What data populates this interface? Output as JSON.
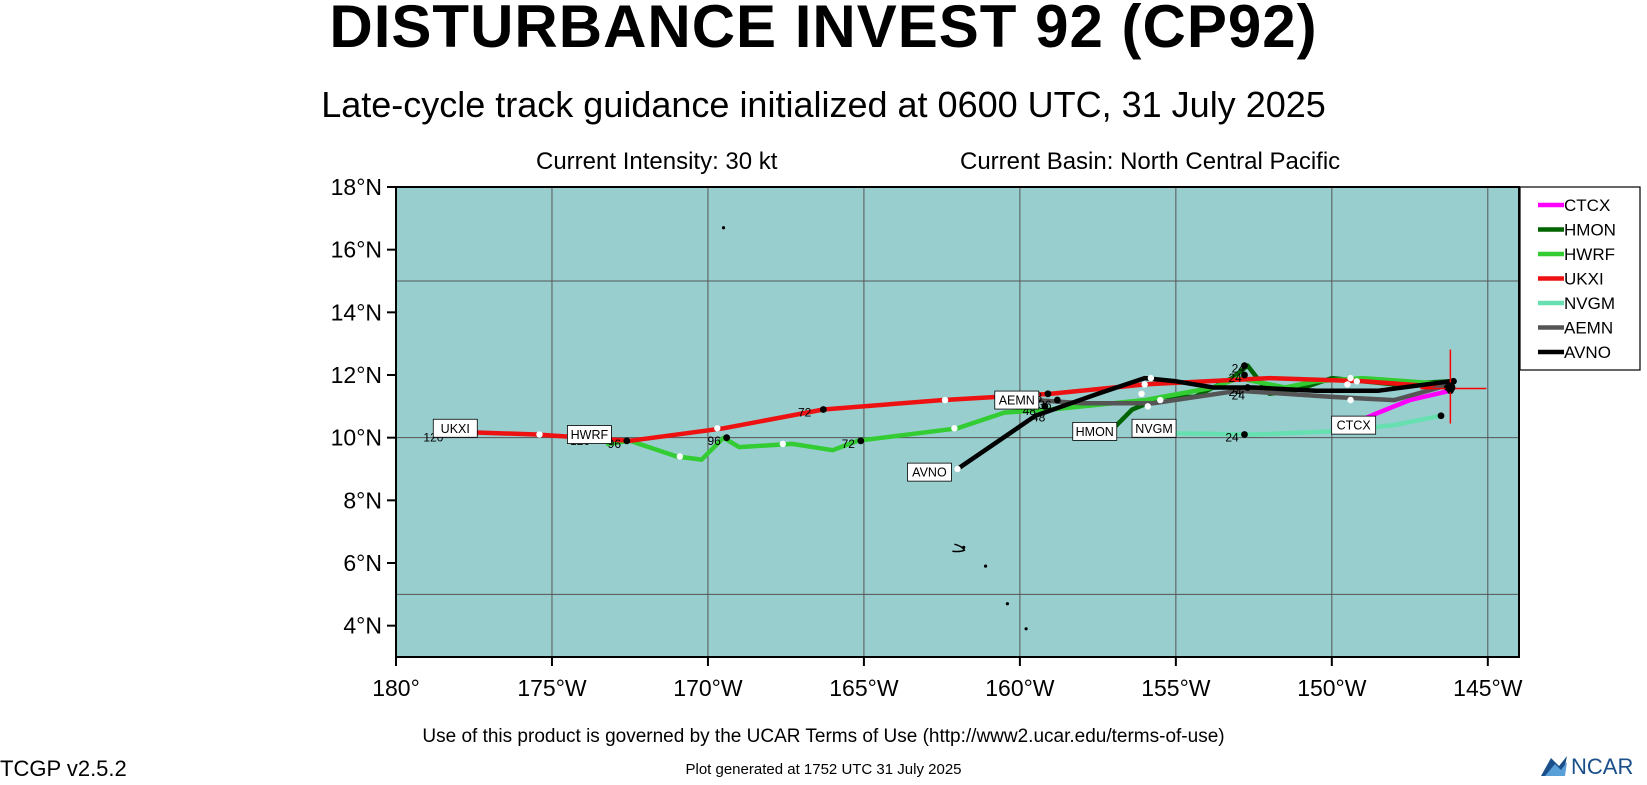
{
  "header": {
    "title": "DISTURBANCE INVEST 92 (CP92)",
    "subtitle": "Late-cycle track guidance initialized at 0600 UTC, 31 July 2025",
    "intensity": "Current Intensity: 30 kt",
    "basin": "Current Basin: North Central Pacific"
  },
  "footer": {
    "terms": "Use of this product is governed by the UCAR Terms of Use (http://www2.ucar.edu/terms-of-use)",
    "version": "TCGP v2.5.2",
    "generated": "Plot generated at 1752 UTC   31 July 2025",
    "logo_text": "NCAR"
  },
  "colors": {
    "ocean": "#99CECF",
    "grid": "#555555",
    "current_position": "#FF0000"
  },
  "chart_data": {
    "type": "line",
    "title": "DISTURBANCE INVEST 92 (CP92)",
    "xlim": [
      -180,
      -144
    ],
    "ylim": [
      3,
      18
    ],
    "x_ticks": [
      -180,
      -175,
      -170,
      -165,
      -160,
      -155,
      -150,
      -145
    ],
    "x_tick_labels": [
      "180°",
      "175°W",
      "170°W",
      "165°W",
      "160°W",
      "155°W",
      "150°W",
      "145°W"
    ],
    "y_ticks": [
      4,
      6,
      8,
      10,
      12,
      14,
      16,
      18
    ],
    "y_tick_labels": [
      "4°N",
      "6°N",
      "8°N",
      "10°N",
      "12°N",
      "14°N",
      "16°N",
      "18°N"
    ],
    "grid": true,
    "legend_position": "right",
    "current_position": {
      "lon": -146.2,
      "lat": 11.6
    },
    "series": [
      {
        "name": "CTCX",
        "color": "#FF00FF",
        "track": [
          [
            -146.2,
            11.5
          ],
          [
            -147.5,
            11.2
          ],
          [
            -148.5,
            10.8
          ],
          [
            -149.2,
            10.5
          ]
        ],
        "tag": {
          "text": "CTCX",
          "lon": -149.3,
          "lat": 10.4
        },
        "point_labels": []
      },
      {
        "name": "HMON",
        "color": "#006400",
        "track": [
          [
            -146.2,
            11.8
          ],
          [
            -148,
            11.7
          ],
          [
            -150,
            11.9
          ],
          [
            -151.2,
            11.5
          ],
          [
            -152,
            11.4
          ],
          [
            -152.7,
            12.3
          ],
          [
            -153.2,
            11.9
          ],
          [
            -154.4,
            11.3
          ],
          [
            -155.4,
            11.3
          ],
          [
            -156.4,
            10.9
          ],
          [
            -157,
            10.3
          ]
        ],
        "tag": {
          "text": "HMON",
          "lon": -157.6,
          "lat": 10.2
        },
        "point_labels": [
          {
            "text": "24",
            "lon": -153.0,
            "lat": 12.2
          }
        ]
      },
      {
        "name": "HWRF",
        "color": "#33CC33",
        "track": [
          [
            -146.2,
            11.7
          ],
          [
            -149,
            11.9
          ],
          [
            -150.5,
            11.8
          ],
          [
            -151.5,
            11.6
          ],
          [
            -153,
            11.9
          ],
          [
            -153.8,
            11.6
          ],
          [
            -156,
            11.2
          ],
          [
            -159,
            10.9
          ],
          [
            -160.5,
            10.8
          ],
          [
            -162,
            10.3
          ],
          [
            -165.2,
            9.9
          ],
          [
            -166,
            9.6
          ],
          [
            -167.3,
            9.8
          ],
          [
            -169,
            9.7
          ],
          [
            -169.5,
            10
          ],
          [
            -170.2,
            9.3
          ],
          [
            -171,
            9.4
          ],
          [
            -172.5,
            9.9
          ],
          [
            -173.2,
            9.8
          ]
        ],
        "tag": {
          "text": "HWRF",
          "lon": -173.8,
          "lat": 10.1
        },
        "point_labels": [
          {
            "text": "96",
            "lon": -173.0,
            "lat": 9.8
          }
        ]
      },
      {
        "name": "UKXI",
        "color": "#EE1111",
        "track": [
          [
            -146.2,
            11.6
          ],
          [
            -149,
            11.8
          ],
          [
            -152,
            11.9
          ],
          [
            -156,
            11.7
          ],
          [
            -159,
            11.4
          ],
          [
            -162.5,
            11.2
          ],
          [
            -166.3,
            10.9
          ],
          [
            -169.5,
            10.3
          ],
          [
            -172.5,
            9.9
          ],
          [
            -175.5,
            10.1
          ],
          [
            -178.5,
            10.2
          ]
        ],
        "tag": {
          "text": "UKXI",
          "lon": -178.1,
          "lat": 10.3
        },
        "point_labels": [
          {
            "text": "120",
            "lon": -178.8,
            "lat": 10.0
          },
          {
            "text": "120",
            "lon": -174.1,
            "lat": 9.9
          },
          {
            "text": "96",
            "lon": -169.8,
            "lat": 9.9
          },
          {
            "text": "72",
            "lon": -166.9,
            "lat": 10.8
          },
          {
            "text": "72",
            "lon": -165.5,
            "lat": 9.8
          }
        ]
      },
      {
        "name": "NVGM",
        "color": "#66E0B0",
        "track": [
          [
            -146.5,
            10.7
          ],
          [
            -148,
            10.4
          ],
          [
            -150,
            10.2
          ],
          [
            -152.5,
            10.1
          ],
          [
            -155.7,
            10.15
          ]
        ],
        "tag": {
          "text": "NVGM",
          "lon": -155.7,
          "lat": 10.3
        },
        "point_labels": [
          {
            "text": "24",
            "lon": -153.2,
            "lat": 10.0
          }
        ]
      },
      {
        "name": "AEMN",
        "color": "#555555",
        "track": [
          [
            -146.2,
            11.7
          ],
          [
            -148,
            11.2
          ],
          [
            -150,
            11.3
          ],
          [
            -153,
            11.5
          ],
          [
            -155.7,
            11.1
          ],
          [
            -158,
            11.1
          ],
          [
            -159.5,
            11.2
          ]
        ],
        "tag": {
          "text": "AEMN",
          "lon": -160.1,
          "lat": 11.2
        },
        "point_labels": [
          {
            "text": "48",
            "lon": -159.5,
            "lat": 11.3
          },
          {
            "text": "48",
            "lon": -159.7,
            "lat": 10.85
          },
          {
            "text": "36",
            "lon": -159.2,
            "lat": 11.05
          },
          {
            "text": "48",
            "lon": -159.4,
            "lat": 10.65
          },
          {
            "text": "24",
            "lon": -153.1,
            "lat": 11.9
          },
          {
            "text": "24",
            "lon": -153.1,
            "lat": 11.45
          },
          {
            "text": "24",
            "lon": -153.0,
            "lat": 11.35
          }
        ]
      },
      {
        "name": "AVNO",
        "color": "#000000",
        "track": [
          [
            -146.2,
            11.8
          ],
          [
            -148.5,
            11.5
          ],
          [
            -150.5,
            11.5
          ],
          [
            -152.5,
            11.6
          ],
          [
            -153.8,
            11.6
          ],
          [
            -155,
            11.8
          ],
          [
            -156,
            11.9
          ],
          [
            -157.5,
            11.4
          ],
          [
            -159.5,
            10.7
          ],
          [
            -162,
            9.0
          ]
        ],
        "tag": {
          "text": "AVNO",
          "lon": -162.9,
          "lat": 8.9
        },
        "point_labels": []
      }
    ],
    "white_points": [
      [
        -175.4,
        10.1
      ],
      [
        -169.7,
        10.3
      ],
      [
        -162.4,
        11.2
      ],
      [
        -155.8,
        11.9
      ],
      [
        -155.5,
        11.2
      ],
      [
        -149.4,
        11.9
      ],
      [
        -149.2,
        11.8
      ],
      [
        -149.4,
        11.2
      ],
      [
        -156,
        11.7
      ],
      [
        -162.1,
        10.3
      ],
      [
        -167.6,
        9.8
      ],
      [
        -170.9,
        9.4
      ],
      [
        -155.9,
        11.0
      ],
      [
        -162.0,
        9.0
      ],
      [
        -149.5,
        11.7
      ],
      [
        -156.1,
        11.4
      ]
    ],
    "black_points": [
      [
        -172.6,
        9.9
      ],
      [
        -169.4,
        10.0
      ],
      [
        -166.3,
        10.9
      ],
      [
        -165.1,
        9.9
      ],
      [
        -159.1,
        11.4
      ],
      [
        -158.8,
        11.2
      ],
      [
        -159.2,
        11.0
      ],
      [
        -152.8,
        12.3
      ],
      [
        -152.8,
        12.0
      ],
      [
        -152.7,
        11.6
      ],
      [
        -152.8,
        10.1
      ],
      [
        -146.5,
        10.7
      ],
      [
        -146.1,
        11.8
      ],
      [
        -146.2,
        11.5
      ],
      [
        -146.3,
        11.6
      ]
    ]
  },
  "legend": {
    "items": [
      {
        "label": "CTCX",
        "color": "#FF00FF"
      },
      {
        "label": "HMON",
        "color": "#006400"
      },
      {
        "label": "HWRF",
        "color": "#33CC33"
      },
      {
        "label": "UKXI",
        "color": "#EE1111"
      },
      {
        "label": "NVGM",
        "color": "#66E0B0"
      },
      {
        "label": "AEMN",
        "color": "#555555"
      },
      {
        "label": "AVNO",
        "color": "#000000"
      }
    ]
  }
}
